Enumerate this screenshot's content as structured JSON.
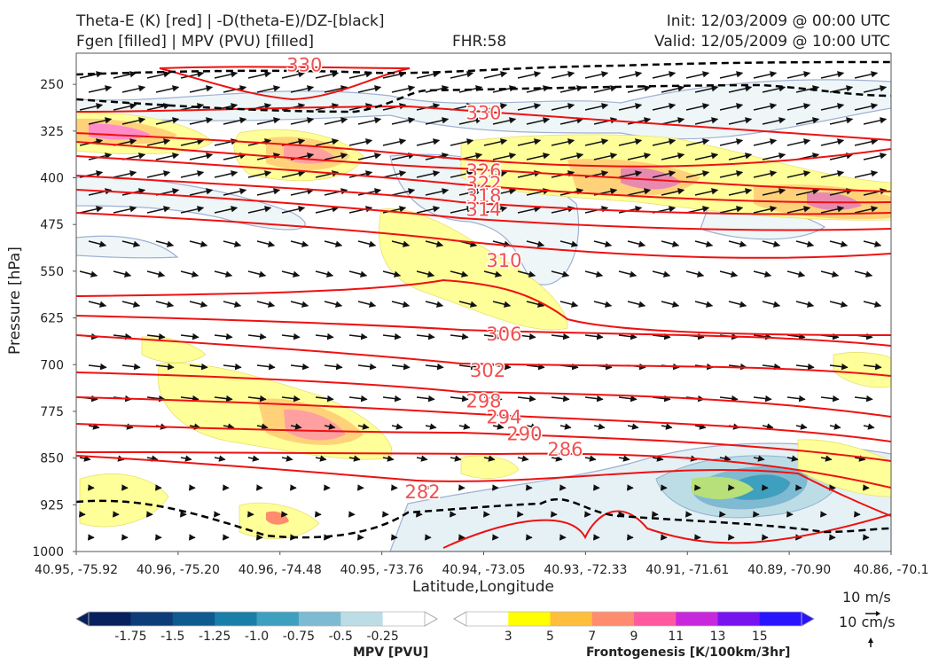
{
  "header": {
    "title_left_1": "Theta-E (K) [red] | -D(theta-E)/DZ-[black]",
    "title_left_2": "Fgen [filled] | MPV (PVU) [filled]",
    "fhr": "FHR:58",
    "init": "Init: 12/03/2009 @ 00:00 UTC",
    "valid": "Valid: 12/05/2009 @ 10:00 UTC"
  },
  "chart_data": {
    "type": "cross-section",
    "xlabel": "Latitude,Longitude",
    "ylabel": "Pressure [hPa]",
    "y_ticks": [
      250,
      325,
      400,
      475,
      550,
      625,
      700,
      775,
      850,
      925,
      1000
    ],
    "y_range": [
      200,
      1000
    ],
    "x_ticks": [
      "40.95, -75.92",
      "40.96, -75.20",
      "40.96, -74.48",
      "40.95, -73.76",
      "40.94, -73.05",
      "40.93, -72.33",
      "40.91, -71.61",
      "40.89, -70.90",
      "40.86, -70.1"
    ],
    "theta_e_labels": [
      {
        "value": "330",
        "x": 0.28,
        "p": 218
      },
      {
        "value": "330",
        "x": 0.5,
        "p": 295
      },
      {
        "value": "326",
        "x": 0.5,
        "p": 388
      },
      {
        "value": "322",
        "x": 0.5,
        "p": 408
      },
      {
        "value": "318",
        "x": 0.5,
        "p": 428
      },
      {
        "value": "314",
        "x": 0.5,
        "p": 450
      },
      {
        "value": "310",
        "x": 0.525,
        "p": 532
      },
      {
        "value": "306",
        "x": 0.525,
        "p": 650
      },
      {
        "value": "302",
        "x": 0.505,
        "p": 708
      },
      {
        "value": "298",
        "x": 0.5,
        "p": 757
      },
      {
        "value": "294",
        "x": 0.525,
        "p": 783
      },
      {
        "value": "290",
        "x": 0.55,
        "p": 810
      },
      {
        "value": "286",
        "x": 0.6,
        "p": 835
      },
      {
        "value": "282",
        "x": 0.425,
        "p": 903
      }
    ],
    "mpv_colorbar": {
      "title": "MPV [PVU]",
      "levels": [
        "-1.75",
        "-1.5",
        "-1.25",
        "-1.0",
        "-0.75",
        "-0.5",
        "-0.25"
      ],
      "colors": [
        "#08205e",
        "#0d3c78",
        "#0f5a8f",
        "#1a7fa8",
        "#3f9fbe",
        "#7cbbd2",
        "#bcdde6",
        "#ffffff"
      ]
    },
    "fgen_colorbar": {
      "title": "Frontogenesis [K/100km/3hr]",
      "levels": [
        "3",
        "5",
        "7",
        "9",
        "11",
        "13",
        "15"
      ],
      "colors": [
        "#ffffff",
        "#ffff00",
        "#ffbe3c",
        "#ff8c6e",
        "#ff5aa0",
        "#c828dc",
        "#7814f0",
        "#2814ff"
      ]
    },
    "vector_key": {
      "top": "10 m/s",
      "bottom": "10 cm/s"
    }
  }
}
